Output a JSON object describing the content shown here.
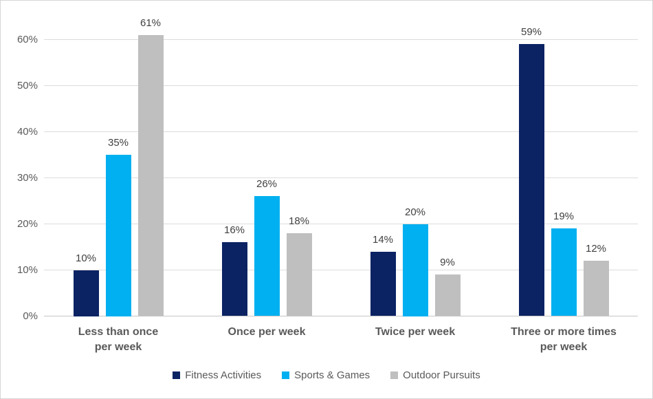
{
  "chart_data": {
    "type": "bar",
    "categories": [
      "Less than once\nper week",
      "Once per week",
      "Twice per week",
      "Three or more times\nper week"
    ],
    "series": [
      {
        "name": "Fitness Activities",
        "color": "#0B2363",
        "values": [
          10,
          16,
          14,
          59
        ]
      },
      {
        "name": "Sports & Games",
        "color": "#00B0F0",
        "values": [
          35,
          26,
          20,
          19
        ]
      },
      {
        "name": "Outdoor Pursuits",
        "color": "#BFBFBF",
        "values": [
          61,
          18,
          9,
          12
        ]
      }
    ],
    "data_labels": [
      "10%",
      "16%",
      "14%",
      "59%",
      "35%",
      "26%",
      "20%",
      "19%",
      "61%",
      "18%",
      "9%",
      "12%"
    ],
    "value_suffix": "%",
    "ylim": [
      0,
      60
    ],
    "ytick_step": 10,
    "ytick_labels": [
      "0%",
      "10%",
      "20%",
      "30%",
      "40%",
      "50%",
      "60%"
    ],
    "grid": true,
    "legend_position": "bottom",
    "legend": [
      "Fitness Activities",
      "Sports & Games",
      "Outdoor Pursuits"
    ]
  },
  "colors": {
    "background": "#FFFFFF",
    "border": "#D5D5D5",
    "gridline": "#DCDCDC",
    "axis_line": "#C5C5C5",
    "tick_label": "#595959",
    "category_label": "#595959",
    "data_label": "#404040",
    "legend_text": "#595959"
  }
}
